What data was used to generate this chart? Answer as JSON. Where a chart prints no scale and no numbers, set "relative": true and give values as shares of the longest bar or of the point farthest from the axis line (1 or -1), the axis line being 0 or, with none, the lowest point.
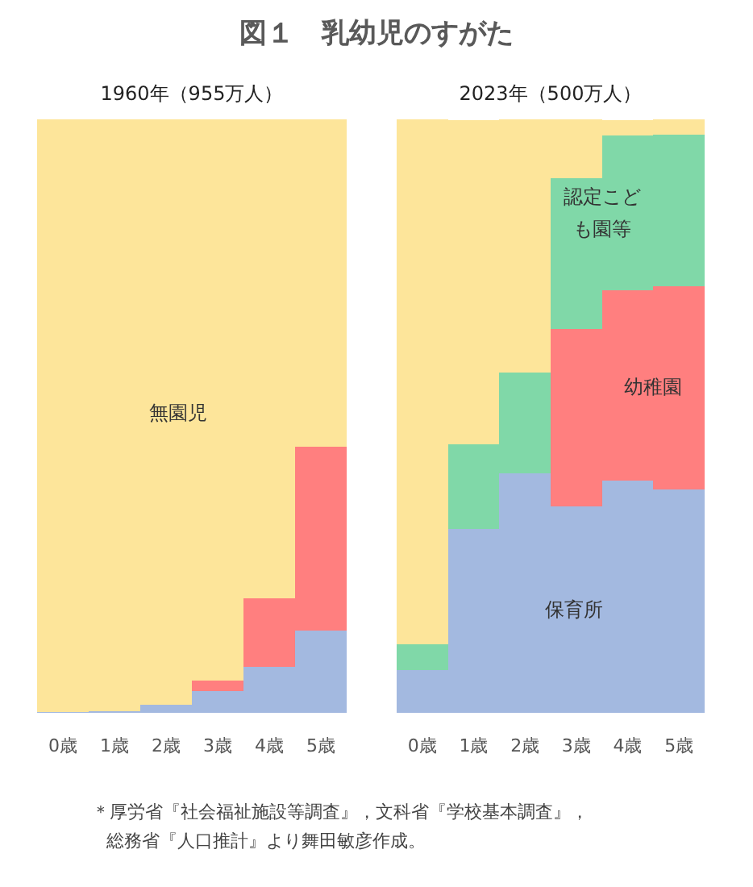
{
  "chart_data": [
    {
      "type": "bar",
      "title": "図１　乳幼児のすがた",
      "subtitle": "1960年（955万人）",
      "stacked": true,
      "relative": true,
      "categories": [
        "0歳",
        "1歳",
        "2歳",
        "3歳",
        "4歳",
        "5歳"
      ],
      "series": [
        {
          "color": "#a3b9e0",
          "values": [
            0.002,
            0.003,
            0.013,
            0.037,
            0.078,
            0.138
          ]
        },
        {
          "color": "#ff7f7f",
          "values": [
            0,
            0,
            0,
            0.017,
            0.115,
            0.31
          ]
        },
        {
          "color": "#80d8a8",
          "values": [
            0,
            0,
            0,
            0,
            0,
            0
          ]
        },
        {
          "name": "無園児",
          "color": "#fde59a",
          "values": [
            0.998,
            0.997,
            0.987,
            0.946,
            0.807,
            0.552
          ]
        }
      ],
      "annotations": [
        "＊厚労省『社会福祉施設等調査』，文科省『学校基本調査』，",
        "総務省『人口推計』より舞田敏彦作成。"
      ]
    },
    {
      "type": "bar",
      "subtitle": "2023年（500万人）",
      "stacked": true,
      "relative": true,
      "categories": [
        "0歳",
        "1歳",
        "2歳",
        "3歳",
        "4歳",
        "5歳"
      ],
      "series": [
        {
          "name": "保育所",
          "color": "#a3b9e0",
          "values": [
            0.072,
            0.31,
            0.404,
            0.348,
            0.391,
            0.377
          ]
        },
        {
          "name": "幼稚園",
          "color": "#ff7f7f",
          "values": [
            0,
            0,
            0,
            0.299,
            0.321,
            0.342
          ]
        },
        {
          "name": "認定こども園等",
          "color": "#80d8a8",
          "values": [
            0.044,
            0.143,
            0.17,
            0.254,
            0.261,
            0.255
          ]
        },
        {
          "color": "#fde59a",
          "values": [
            0.884,
            0.546,
            0.426,
            0.099,
            0.026,
            0.026
          ]
        }
      ]
    }
  ]
}
